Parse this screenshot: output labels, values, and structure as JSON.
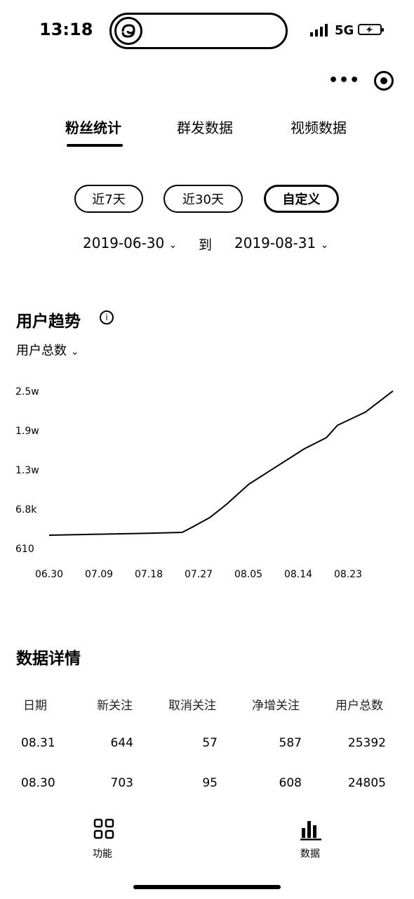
{
  "status_bar": {
    "time": "13:18",
    "network": "5G"
  },
  "tabs": [
    {
      "label": "粉丝统计",
      "active": true
    },
    {
      "label": "群发数据",
      "active": false
    },
    {
      "label": "视频数据",
      "active": false
    }
  ],
  "range": {
    "options": [
      {
        "label": "近7天",
        "active": false
      },
      {
        "label": "近30天",
        "active": false
      },
      {
        "label": "自定义",
        "active": true
      }
    ],
    "start_date": "2019-06-30",
    "to_label": "到",
    "end_date": "2019-08-31"
  },
  "trend": {
    "title": "用户趋势",
    "info_icon": "i",
    "metric_label": "用户总数"
  },
  "chart_data": {
    "type": "line",
    "title": "",
    "xlabel": "",
    "ylabel": "",
    "y_tick_labels": [
      "2.5w",
      "1.9w",
      "1.3w",
      "6.8k",
      "610"
    ],
    "y_tick_values": [
      25000,
      19000,
      13000,
      6800,
      610
    ],
    "x_tick_labels": [
      "06.30",
      "07.09",
      "07.18",
      "07.27",
      "08.05",
      "08.14",
      "08.23"
    ],
    "ylim": [
      610,
      25000
    ],
    "grid": false,
    "series": [
      {
        "x": [
          "06.30",
          "07.09",
          "07.18",
          "07.24",
          "07.26",
          "07.29",
          "08.01",
          "08.05",
          "08.10",
          "08.15",
          "08.19",
          "08.21",
          "08.26",
          "08.31"
        ],
        "values": [
          610,
          780,
          950,
          1100,
          2100,
          3700,
          6000,
          9500,
          12600,
          15600,
          17500,
          19600,
          21800,
          25392
        ]
      }
    ]
  },
  "details": {
    "title": "数据详情",
    "columns": [
      "日期",
      "新关注",
      "取消关注",
      "净增关注",
      "用户总数"
    ],
    "rows": [
      [
        "08.31",
        "644",
        "57",
        "587",
        "25392"
      ],
      [
        "08.30",
        "703",
        "95",
        "608",
        "24805"
      ]
    ]
  },
  "bottom_nav": [
    {
      "label": "功能",
      "icon": "grid-icon"
    },
    {
      "label": "数据",
      "icon": "bar-chart-icon"
    }
  ]
}
